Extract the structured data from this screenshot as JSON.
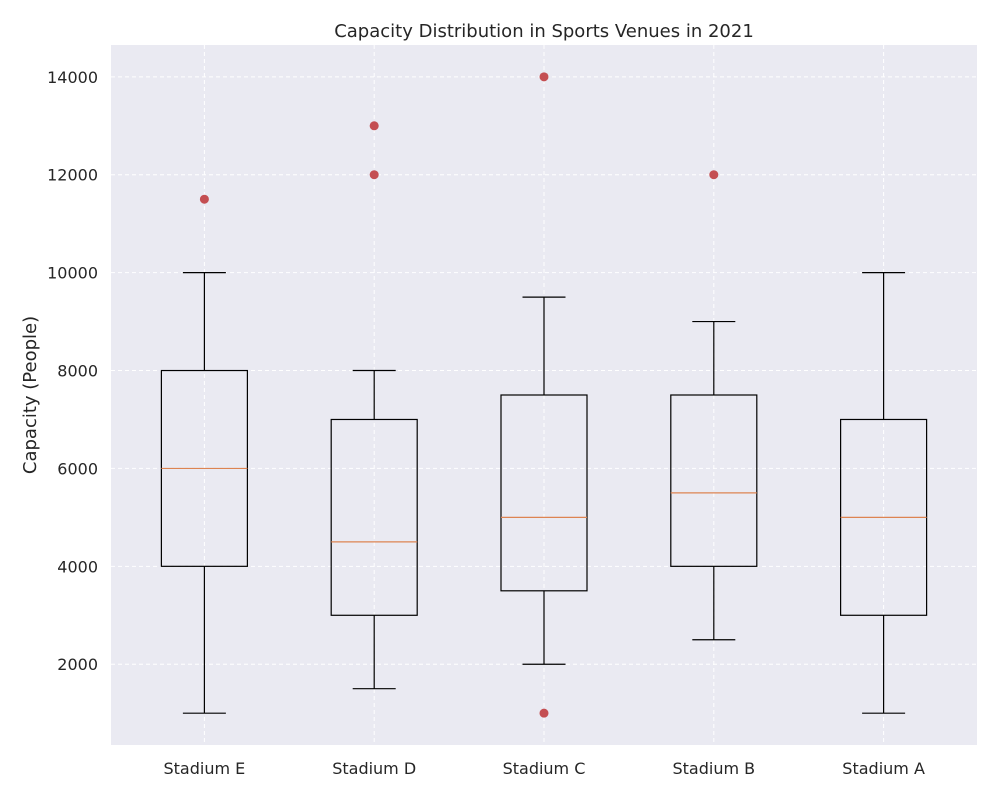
{
  "chart_data": {
    "type": "box",
    "title": "Capacity Distribution in Sports Venues in 2021",
    "xlabel": "",
    "ylabel": "Capacity (People)",
    "ylim": [
      350,
      14650
    ],
    "yticks": [
      2000,
      4000,
      6000,
      8000,
      10000,
      12000,
      14000
    ],
    "grid": true,
    "colors": {
      "plot_background": "#eaeaf2",
      "grid": "#ffffff",
      "box": "#000000",
      "median": "#dd8452",
      "outlier": "#c44e52"
    },
    "categories": [
      "Stadium E",
      "Stadium D",
      "Stadium C",
      "Stadium B",
      "Stadium A"
    ],
    "boxes": [
      {
        "name": "Stadium E",
        "whisker_low": 1000,
        "q1": 4000,
        "median": 6000,
        "q3": 8000,
        "whisker_high": 10000,
        "outliers": [
          11500
        ]
      },
      {
        "name": "Stadium D",
        "whisker_low": 1500,
        "q1": 3000,
        "median": 4500,
        "q3": 7000,
        "whisker_high": 8000,
        "outliers": [
          12000,
          13000
        ]
      },
      {
        "name": "Stadium C",
        "whisker_low": 2000,
        "q1": 3500,
        "median": 5000,
        "q3": 7500,
        "whisker_high": 9500,
        "outliers": [
          14000,
          1000
        ]
      },
      {
        "name": "Stadium B",
        "whisker_low": 2500,
        "q1": 4000,
        "median": 5500,
        "q3": 7500,
        "whisker_high": 9000,
        "outliers": [
          12000
        ]
      },
      {
        "name": "Stadium A",
        "whisker_low": 1000,
        "q1": 3000,
        "median": 5000,
        "q3": 7000,
        "whisker_high": 10000,
        "outliers": []
      }
    ]
  }
}
